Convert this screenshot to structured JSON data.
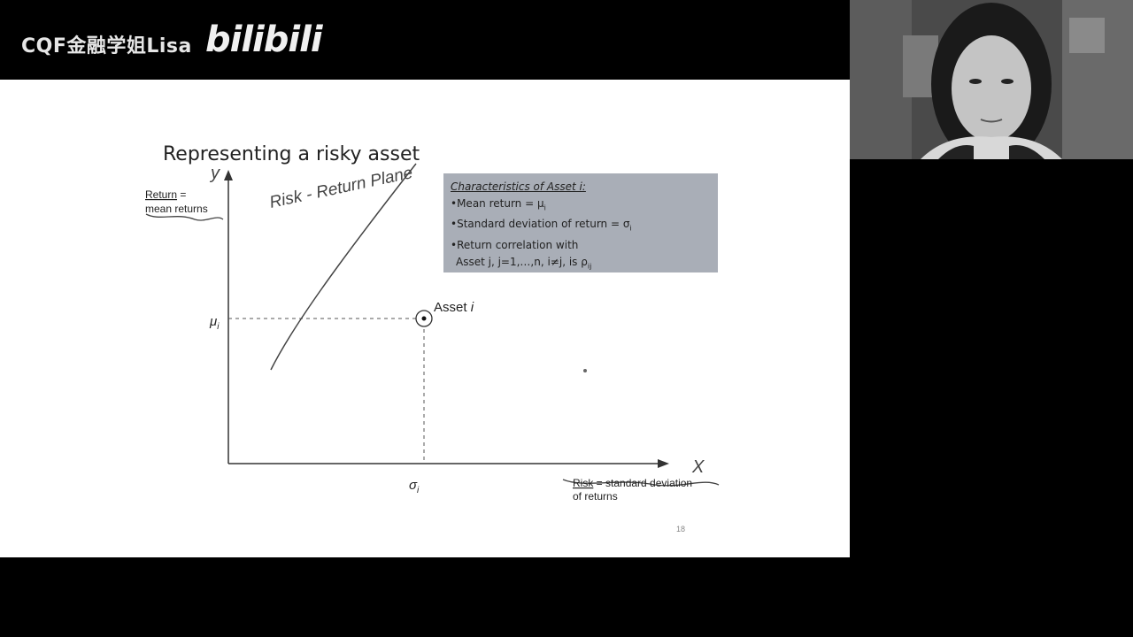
{
  "header": {
    "brand": "CQF金融学姐Lisa",
    "logo": "bilibili"
  },
  "slide": {
    "title": "Representing a risky asset",
    "y_axis_label": "Return",
    "y_axis_label_eq": " =",
    "y_axis_label_line2": "mean returns",
    "x_axis_label": "Risk",
    "x_axis_label_eq": " = standard deviation",
    "x_axis_label_line2": "of returns",
    "mu_label": "μ",
    "mu_subscript": "i",
    "sigma_label": "σ",
    "sigma_subscript": "i",
    "asset_label": "Asset ",
    "asset_label_italic": "i",
    "infobox": {
      "heading": "Characteristics of Asset i:",
      "line1": "•Mean return = μ",
      "line1_sub": "i",
      "line2": "•Standard deviation of return = σ",
      "line2_sub": "i",
      "line3": "•Return correlation with",
      "line4": "Asset j, j=1,…,n, i≠j, is ρ",
      "line4_sub": "ij"
    },
    "page_number": "18",
    "annotations": {
      "y_handwritten": "y",
      "x_handwritten": "X",
      "plane_handwritten": "Risk - Return Plane"
    }
  },
  "webcam": {
    "description_icon": "presenter-video-icon"
  },
  "colors": {
    "background": "#000000",
    "slide": "#ffffff",
    "infobox": "#a9aeb7",
    "axis": "#333333"
  }
}
